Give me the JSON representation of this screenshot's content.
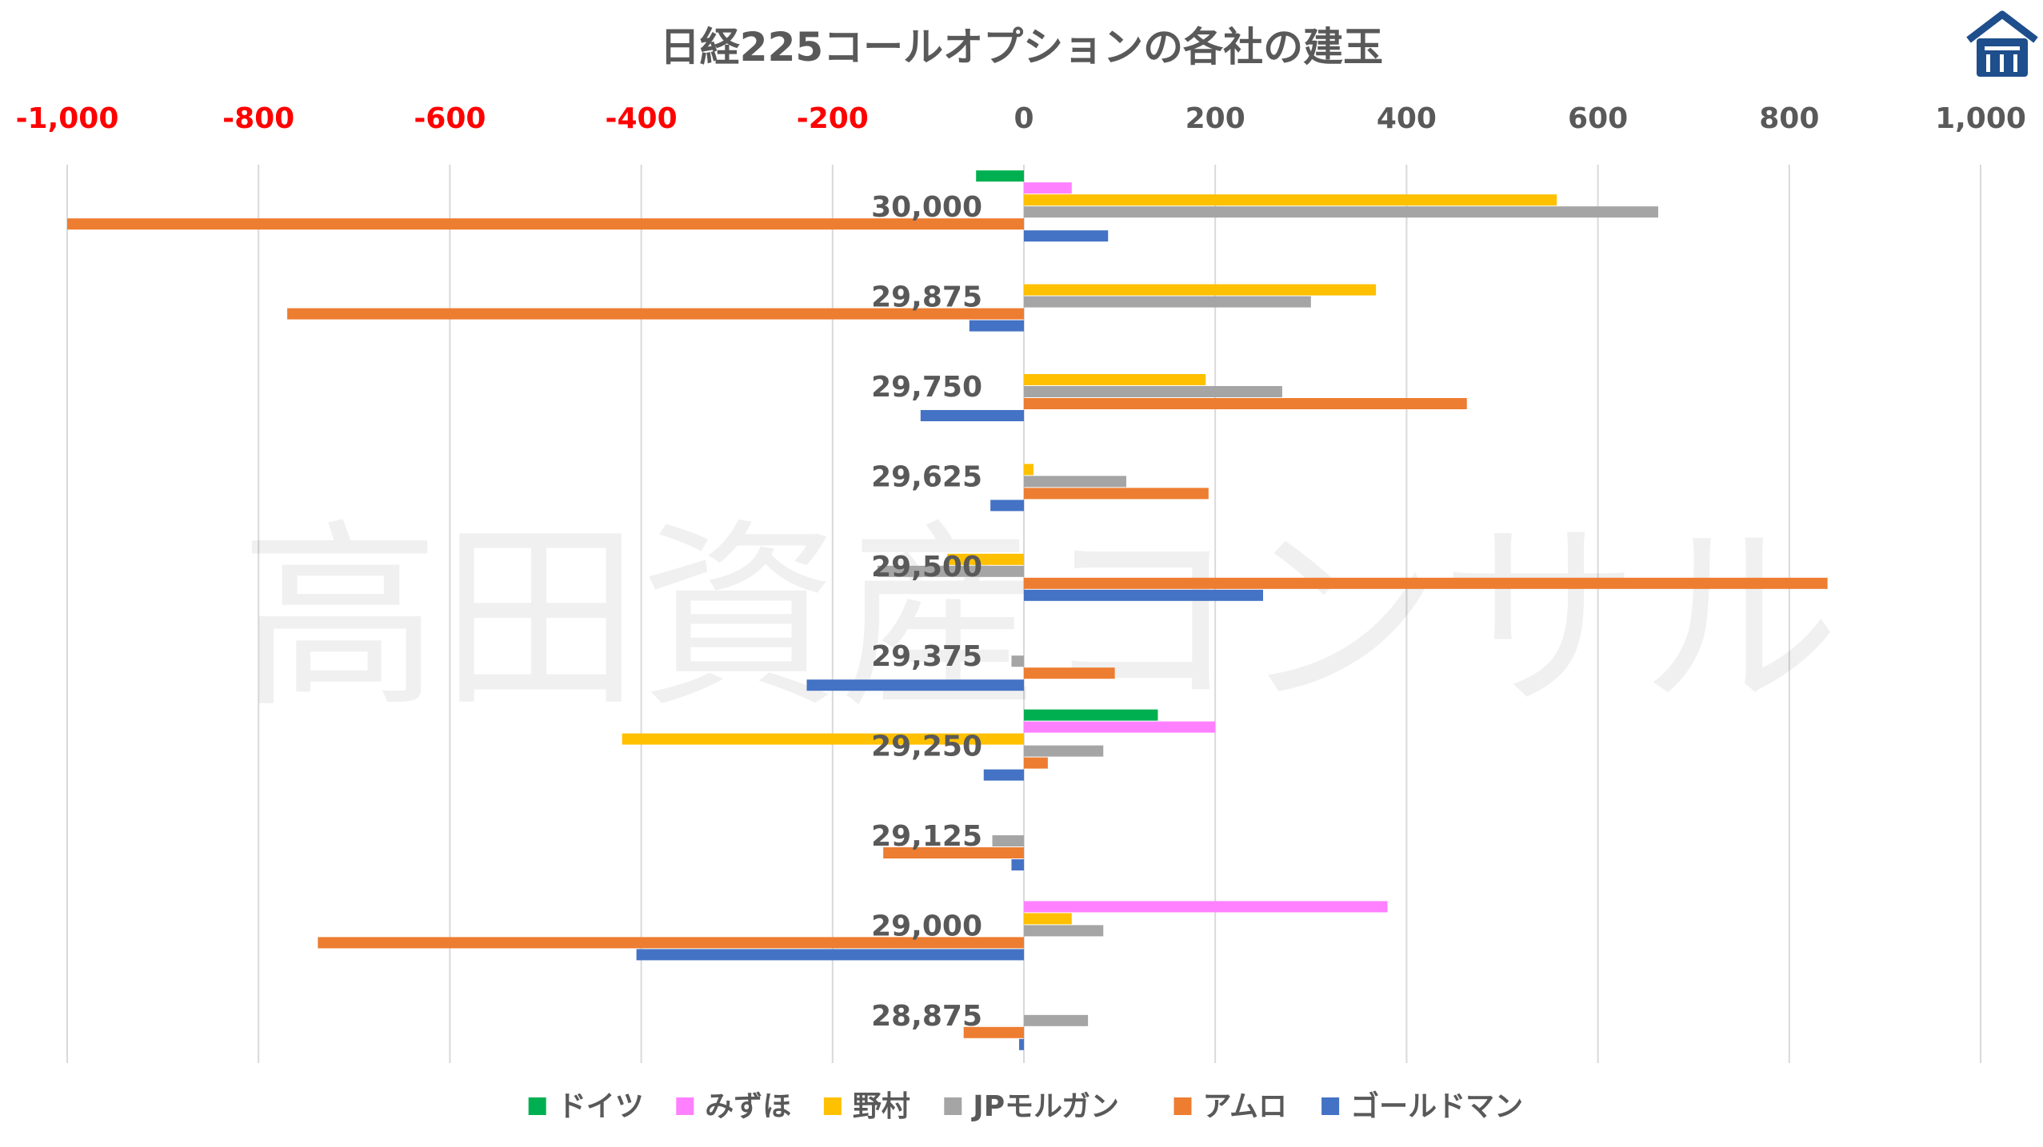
{
  "logo": {
    "name": "house-logo-icon"
  },
  "watermark": "高田資産コンサル",
  "chart_data": {
    "type": "bar",
    "orientation": "horizontal",
    "title": "日経225コールオプションの各社の建玉",
    "xlim": [
      -1000,
      1000
    ],
    "x_ticks": [
      "-1,000",
      "-800",
      "-600",
      "-400",
      "-200",
      "0",
      "200",
      "400",
      "600",
      "800",
      "1,000"
    ],
    "x_tick_values": [
      -1000,
      -800,
      -600,
      -400,
      -200,
      0,
      200,
      400,
      600,
      800,
      1000
    ],
    "negative_tick_color": "#ff0000",
    "grid": true,
    "legend_position": "bottom",
    "categories": [
      "30,000",
      "29,875",
      "29,750",
      "29,625",
      "29,500",
      "29,375",
      "29,250",
      "29,125",
      "29,000",
      "28,875"
    ],
    "series": [
      {
        "name": "ドイツ",
        "color": "#00b050",
        "values": [
          -50,
          0,
          0,
          0,
          0,
          0,
          140,
          0,
          0,
          0
        ]
      },
      {
        "name": "みずほ",
        "color": "#ff80ff",
        "values": [
          50,
          0,
          0,
          0,
          0,
          0,
          200,
          0,
          380,
          0
        ]
      },
      {
        "name": "野村",
        "color": "#ffc000",
        "values": [
          557,
          368,
          190,
          10,
          -80,
          0,
          -420,
          0,
          50,
          0
        ]
      },
      {
        "name": "JPモルガン",
        "color": "#a5a5a5",
        "values": [
          663,
          300,
          270,
          107,
          -153,
          -13,
          83,
          -33,
          83,
          67
        ]
      },
      {
        "name": "アムロ",
        "color": "#ed7d31",
        "values": [
          -1000,
          -770,
          463,
          193,
          840,
          95,
          25,
          -147,
          -738,
          -63
        ]
      },
      {
        "name": "ゴールドマン",
        "color": "#4472c4",
        "values": [
          88,
          -57,
          -108,
          -35,
          250,
          -227,
          -42,
          -13,
          -405,
          -5
        ]
      }
    ]
  }
}
